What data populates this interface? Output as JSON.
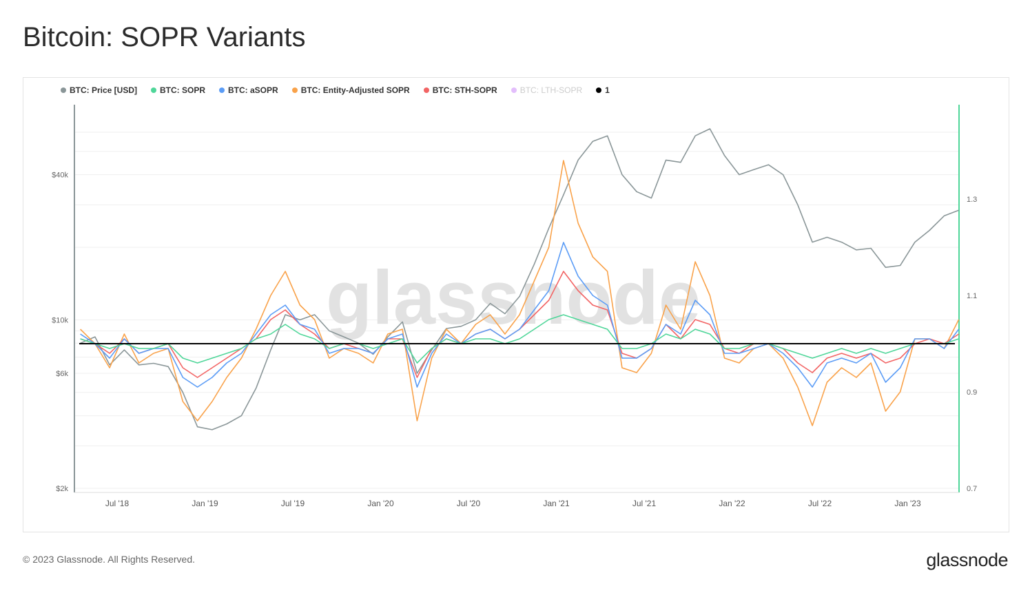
{
  "title": "Bitcoin: SOPR Variants",
  "footer": "© 2023 Glassnode. All Rights Reserved.",
  "logo": "glassnode",
  "watermark": "glassnode",
  "legend": [
    {
      "label": "BTC: Price [USD]",
      "color": "#8a9698",
      "active": true
    },
    {
      "label": "BTC: SOPR",
      "color": "#4fd699",
      "active": true
    },
    {
      "label": "BTC: aSOPR",
      "color": "#5b9cf6",
      "active": true
    },
    {
      "label": "BTC: Entity-Adjusted SOPR",
      "color": "#f9a24a",
      "active": true
    },
    {
      "label": "BTC: STH-SOPR",
      "color": "#f26464",
      "active": true
    },
    {
      "label": "BTC: LTH-SOPR",
      "color": "#c77dfa",
      "active": false
    },
    {
      "label": "1",
      "color": "#000000",
      "active": true
    }
  ],
  "chart_data": {
    "type": "line",
    "title": "Bitcoin: SOPR Variants",
    "x_ticks": [
      "Jul '18",
      "Jan '19",
      "Jul '19",
      "Jan '20",
      "Jul '20",
      "Jan '21",
      "Jul '21",
      "Jan '22",
      "Jul '22",
      "Jan '23"
    ],
    "y_left": {
      "scale": "log",
      "ticks": [
        "$2k",
        "$6k",
        "$10k",
        "$40k"
      ],
      "tick_values": [
        2000,
        6000,
        10000,
        40000
      ],
      "range": [
        2000,
        65000
      ]
    },
    "y_right": {
      "scale": "linear",
      "ticks": [
        "0.7",
        "0.9",
        "1.1",
        "1.3"
      ],
      "tick_values": [
        0.7,
        0.9,
        1.1,
        1.3
      ],
      "range": [
        0.7,
        1.5
      ]
    },
    "x": [
      "2018-04",
      "2018-05",
      "2018-06",
      "2018-07",
      "2018-08",
      "2018-09",
      "2018-10",
      "2018-11",
      "2018-12",
      "2019-01",
      "2019-02",
      "2019-03",
      "2019-04",
      "2019-05",
      "2019-06",
      "2019-07",
      "2019-08",
      "2019-09",
      "2019-10",
      "2019-11",
      "2019-12",
      "2020-01",
      "2020-02",
      "2020-03",
      "2020-04",
      "2020-05",
      "2020-06",
      "2020-07",
      "2020-08",
      "2020-09",
      "2020-10",
      "2020-11",
      "2020-12",
      "2021-01",
      "2021-02",
      "2021-03",
      "2021-04",
      "2021-05",
      "2021-06",
      "2021-07",
      "2021-08",
      "2021-09",
      "2021-10",
      "2021-11",
      "2021-12",
      "2022-01",
      "2022-02",
      "2022-03",
      "2022-04",
      "2022-05",
      "2022-06",
      "2022-07",
      "2022-08",
      "2022-09",
      "2022-10",
      "2022-11",
      "2022-12",
      "2023-01",
      "2023-02",
      "2023-03",
      "2023-04"
    ],
    "series": [
      {
        "name": "BTC: Price [USD]",
        "axis": "left",
        "values": [
          8000,
          8500,
          6500,
          7500,
          6500,
          6600,
          6400,
          5000,
          3600,
          3500,
          3700,
          4000,
          5200,
          7500,
          10500,
          10000,
          10500,
          9000,
          8500,
          8000,
          7200,
          8500,
          9800,
          6000,
          7500,
          9200,
          9400,
          10000,
          11700,
          10600,
          12500,
          17000,
          24000,
          33000,
          46000,
          55000,
          58000,
          40000,
          34000,
          32000,
          46000,
          45000,
          58000,
          62000,
          48000,
          40000,
          42000,
          44000,
          40000,
          30000,
          21000,
          22000,
          21000,
          19500,
          19800,
          16500,
          16800,
          21000,
          23500,
          27000,
          28500
        ]
      },
      {
        "name": "BTC: SOPR",
        "axis": "right",
        "values": [
          1.01,
          1.0,
          0.99,
          1.0,
          0.99,
          0.99,
          1.0,
          0.97,
          0.96,
          0.97,
          0.98,
          0.99,
          1.01,
          1.02,
          1.04,
          1.02,
          1.01,
          0.99,
          1.0,
          1.0,
          0.99,
          1.0,
          1.01,
          0.96,
          0.99,
          1.01,
          1.0,
          1.01,
          1.01,
          1.0,
          1.01,
          1.03,
          1.05,
          1.06,
          1.05,
          1.04,
          1.03,
          0.99,
          0.99,
          1.0,
          1.02,
          1.01,
          1.03,
          1.02,
          0.99,
          0.99,
          1.0,
          1.0,
          0.99,
          0.98,
          0.97,
          0.98,
          0.99,
          0.98,
          0.99,
          0.98,
          0.99,
          1.0,
          1.0,
          1.0,
          1.01
        ]
      },
      {
        "name": "BTC: aSOPR",
        "axis": "right",
        "values": [
          1.02,
          1.0,
          0.97,
          1.01,
          0.98,
          0.99,
          0.99,
          0.93,
          0.91,
          0.93,
          0.96,
          0.98,
          1.02,
          1.06,
          1.08,
          1.04,
          1.03,
          0.98,
          0.99,
          0.99,
          0.98,
          1.01,
          1.02,
          0.91,
          0.98,
          1.02,
          1.0,
          1.02,
          1.03,
          1.01,
          1.03,
          1.07,
          1.11,
          1.21,
          1.14,
          1.1,
          1.08,
          0.97,
          0.97,
          0.99,
          1.04,
          1.02,
          1.09,
          1.06,
          0.98,
          0.98,
          0.99,
          1.0,
          0.98,
          0.95,
          0.91,
          0.96,
          0.97,
          0.96,
          0.98,
          0.92,
          0.95,
          1.01,
          1.01,
          0.99,
          1.03
        ]
      },
      {
        "name": "BTC: Entity-Adjusted SOPR",
        "axis": "right",
        "values": [
          1.03,
          1.0,
          0.95,
          1.02,
          0.96,
          0.98,
          0.99,
          0.88,
          0.84,
          0.88,
          0.93,
          0.97,
          1.03,
          1.1,
          1.15,
          1.08,
          1.05,
          0.97,
          0.99,
          0.98,
          0.96,
          1.02,
          1.03,
          0.84,
          0.97,
          1.03,
          1.0,
          1.04,
          1.06,
          1.02,
          1.06,
          1.13,
          1.2,
          1.38,
          1.25,
          1.18,
          1.15,
          0.95,
          0.94,
          0.98,
          1.08,
          1.03,
          1.17,
          1.1,
          0.97,
          0.96,
          0.99,
          1.0,
          0.97,
          0.91,
          0.83,
          0.92,
          0.95,
          0.93,
          0.96,
          0.86,
          0.9,
          1.01,
          1.01,
          0.99,
          1.05
        ]
      },
      {
        "name": "BTC: STH-SOPR",
        "axis": "right",
        "values": [
          1.01,
          1.0,
          0.98,
          1.01,
          0.98,
          0.99,
          1.0,
          0.95,
          0.93,
          0.95,
          0.97,
          0.99,
          1.01,
          1.05,
          1.07,
          1.04,
          1.02,
          0.99,
          1.0,
          0.99,
          0.98,
          1.01,
          1.01,
          0.93,
          0.99,
          1.01,
          1.0,
          1.02,
          1.03,
          1.01,
          1.03,
          1.06,
          1.09,
          1.15,
          1.11,
          1.08,
          1.07,
          0.98,
          0.97,
          0.99,
          1.04,
          1.01,
          1.05,
          1.04,
          0.99,
          0.98,
          1.0,
          1.0,
          0.99,
          0.96,
          0.94,
          0.97,
          0.98,
          0.97,
          0.98,
          0.96,
          0.97,
          1.0,
          1.01,
          1.0,
          1.02
        ]
      }
    ],
    "reference_line": {
      "name": "1",
      "value": 1
    }
  }
}
